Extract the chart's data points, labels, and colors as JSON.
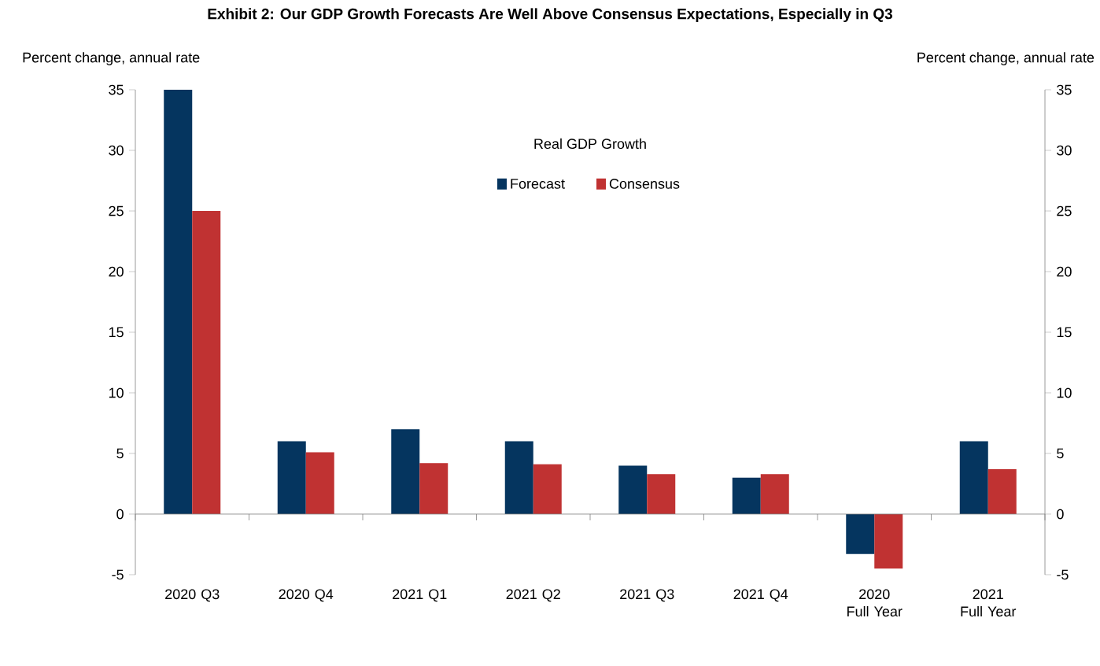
{
  "chart_data": {
    "type": "bar",
    "title": "Exhibit 2: Our GDP Growth Forecasts Are Well Above Consensus Expectations, Especially in Q3",
    "subtitle": "Real GDP Growth",
    "ylabel": "Percent change, annual rate",
    "y2label": "Percent change, annual rate",
    "categories": [
      "2020 Q3",
      "2020 Q4",
      "2021 Q1",
      "2021 Q2",
      "2021 Q3",
      "2021 Q4",
      "2020 Full Year",
      "2021 Full Year"
    ],
    "series": [
      {
        "name": "Forecast",
        "color": "#05355f",
        "values": [
          35,
          6,
          7,
          6,
          4,
          3,
          -3.3,
          6
        ]
      },
      {
        "name": "Consensus",
        "color": "#c03232",
        "values": [
          25,
          5.1,
          4.2,
          4.1,
          3.3,
          3.3,
          -4.5,
          3.7
        ]
      }
    ],
    "ylim": [
      -5,
      35
    ],
    "yticks": [
      -5,
      0,
      5,
      10,
      15,
      20,
      25,
      30,
      35
    ],
    "y2lim": [
      -5,
      35
    ],
    "y2ticks": [
      -5,
      0,
      5,
      10,
      15,
      20,
      25,
      30,
      35
    ],
    "legend": "top"
  }
}
